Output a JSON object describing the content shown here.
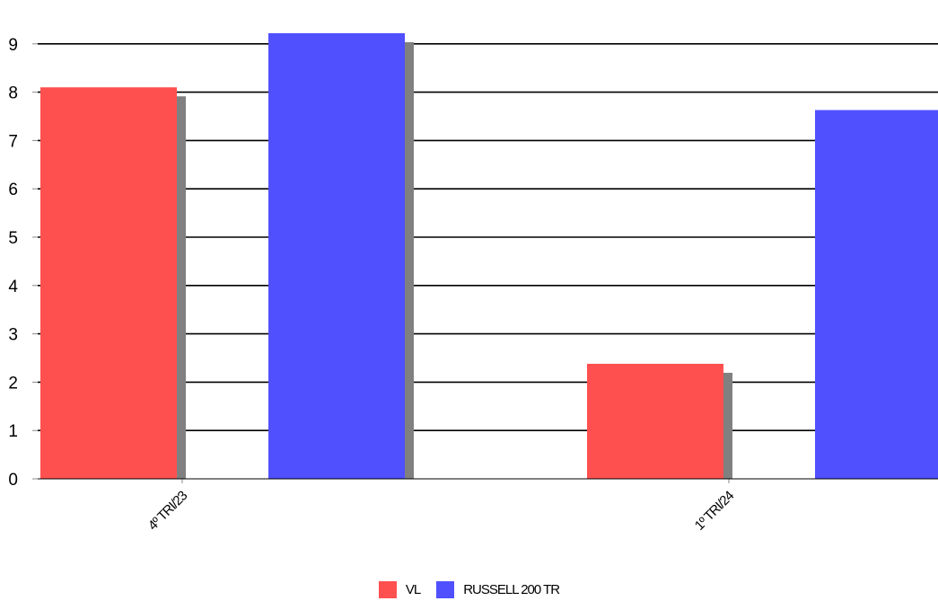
{
  "chart_data": {
    "type": "bar",
    "categories": [
      "4º TRI/23",
      "1º TRI/24"
    ],
    "series": [
      {
        "name": "VL",
        "color": "#ff5050",
        "values": [
          8.1,
          2.38
        ]
      },
      {
        "name": "RUSSELL 200 TR",
        "color": "#5050ff",
        "values": [
          9.22,
          7.63
        ]
      }
    ],
    "y_ticks": [
      "0",
      "1",
      "2",
      "3",
      "4",
      "5",
      "6",
      "7",
      "8",
      "9"
    ],
    "ylim": [
      0,
      9.6
    ],
    "grid": true,
    "legend_position": "bottom-center",
    "shadow_color": "#808080"
  }
}
